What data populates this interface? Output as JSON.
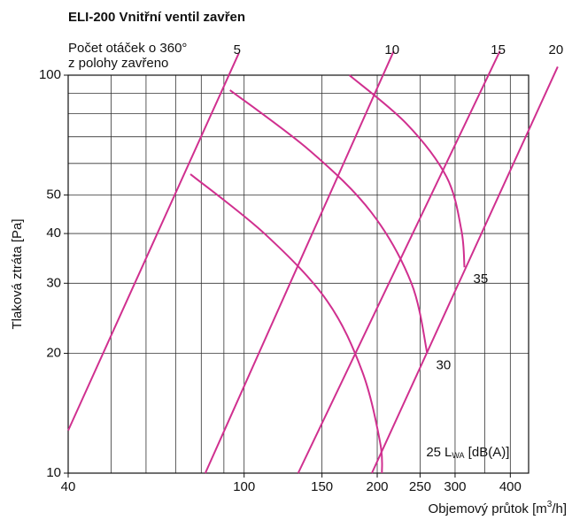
{
  "chart_data": {
    "type": "line",
    "title": "ELI-200 Vnitřní ventil zavřen",
    "legend_title": [
      "Počet otáček o 360°",
      "z polohy zavřeno"
    ],
    "xlabel": {
      "main": "Objemový průtok [m",
      "sup": "3",
      "rest": "/h]"
    },
    "ylabel": "Tlaková ztráta [Pa]",
    "unit_label": {
      "main": "L",
      "sub": "WA",
      "rest": " [dB(A)]"
    },
    "xscale": "log",
    "yscale": "log",
    "xlim": [
      40,
      440
    ],
    "ylim": [
      10,
      100
    ],
    "xticks": [
      40,
      100,
      150,
      200,
      250,
      300,
      400
    ],
    "yticks": [
      10,
      20,
      30,
      40,
      50,
      100
    ],
    "xgrid": [
      50,
      60,
      70,
      80,
      90,
      100,
      150,
      200,
      250,
      300,
      350,
      400
    ],
    "ygrid": [
      20,
      30,
      40,
      50,
      60,
      70,
      80,
      90
    ],
    "grid": true,
    "color": "#d0308f",
    "series": [
      {
        "name": "5",
        "group": "turns",
        "x": [
          40,
          97.3
        ],
        "values": [
          12.8,
          113.6
        ]
      },
      {
        "name": "10",
        "group": "turns",
        "x": [
          81.7,
          218
        ],
        "values": [
          10,
          115
        ]
      },
      {
        "name": "15",
        "group": "turns",
        "x": [
          132.5,
          379
        ],
        "values": [
          10,
          115
        ]
      },
      {
        "name": "20",
        "group": "turns",
        "x": [
          194.5,
          512
        ],
        "values": [
          10,
          105
        ]
      },
      {
        "name": "25",
        "group": "noise",
        "x": [
          75.6,
          111.7,
          154,
          185,
          203,
          205
        ],
        "values": [
          56.4,
          39.8,
          27.1,
          18.0,
          11.96,
          10
        ]
      },
      {
        "name": "30",
        "group": "noise",
        "x": [
          92.9,
          140.6,
          194,
          239,
          259.5
        ],
        "values": [
          91.7,
          64.7,
          45.2,
          30.0,
          20.0
        ]
      },
      {
        "name": "35",
        "group": "noise",
        "x": [
          173,
          233,
          287,
          310,
          315
        ],
        "values": [
          100,
          75.5,
          55.5,
          40.8,
          32.9
        ]
      }
    ]
  }
}
